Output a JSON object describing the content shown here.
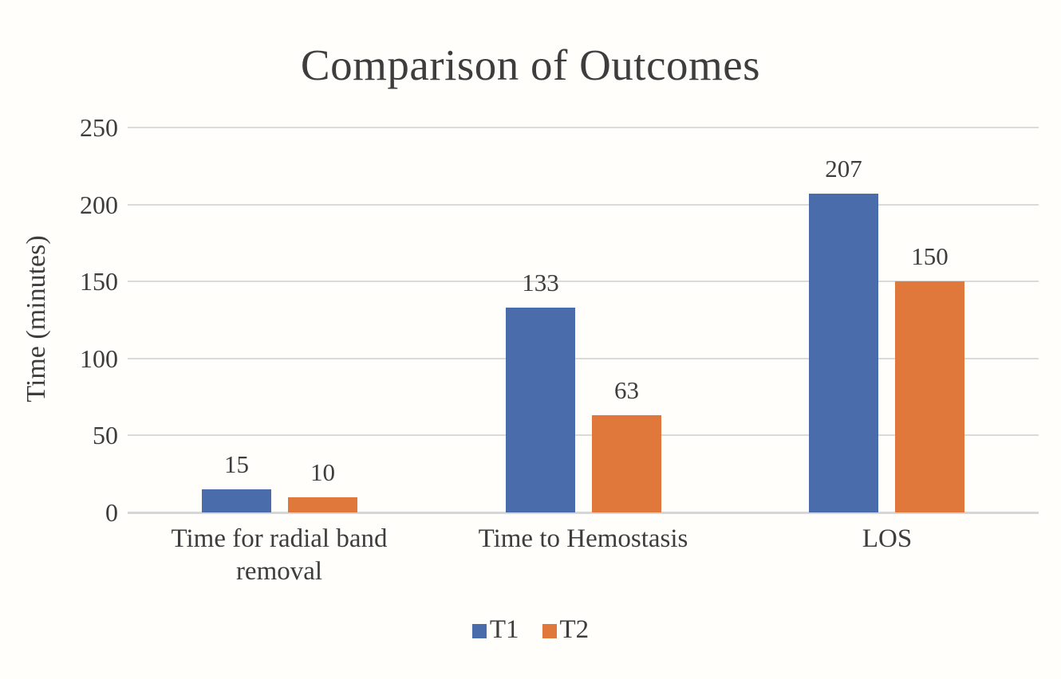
{
  "chart_data": {
    "type": "bar",
    "title": "Comparison of Outcomes",
    "ylabel": "Time (minutes)",
    "xlabel": "",
    "categories": [
      "Time for radial band removal",
      "Time to Hemostasis",
      "LOS"
    ],
    "series": [
      {
        "name": "T1",
        "color": "#4a6cab",
        "values": [
          15,
          133,
          207
        ]
      },
      {
        "name": "T2",
        "color": "#e0783c",
        "values": [
          10,
          63,
          150
        ]
      }
    ],
    "ylim": [
      0,
      250
    ],
    "yticks": [
      0,
      50,
      100,
      150,
      200,
      250
    ],
    "grid": true,
    "data_labels": true,
    "legend_position": "bottom"
  },
  "colors": {
    "background": "#fffefa",
    "text": "#3d3d3d",
    "gridline": "#dadada",
    "baseline": "#d6d6d6"
  }
}
